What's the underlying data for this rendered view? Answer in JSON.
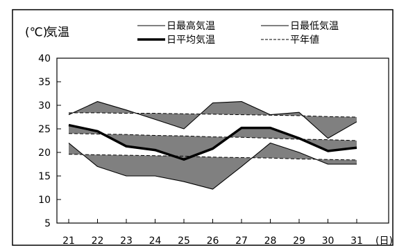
{
  "chart_data": {
    "type": "line",
    "title": "気温",
    "ylabel": "(℃)",
    "xlabel": "(日)",
    "ylim": [
      5,
      40
    ],
    "yticks": [
      5,
      10,
      15,
      20,
      25,
      30,
      35,
      40
    ],
    "x": [
      21,
      22,
      23,
      24,
      25,
      26,
      27,
      28,
      29,
      30,
      31
    ],
    "grid": false,
    "legend_position": "top-right",
    "series": [
      {
        "name": "日最高気温",
        "style": "thin-solid",
        "values": [
          28.0,
          30.8,
          29.0,
          27.0,
          25.0,
          30.5,
          30.8,
          28.0,
          28.5,
          23.0,
          26.5
        ]
      },
      {
        "name": "日最低気温",
        "style": "thin-solid",
        "values": [
          22.0,
          17.0,
          15.0,
          15.0,
          13.8,
          12.2,
          17.0,
          22.0,
          20.0,
          17.5,
          17.5
        ]
      },
      {
        "name": "日平均気温",
        "style": "thick-solid",
        "values": [
          25.8,
          24.5,
          21.3,
          20.5,
          18.5,
          20.8,
          25.2,
          25.2,
          23.0,
          20.3,
          21.0
        ]
      },
      {
        "name": "平年値",
        "style": "dashed",
        "group": "max",
        "values": [
          28.4,
          28.4,
          28.3,
          28.3,
          28.2,
          28.1,
          28.0,
          27.9,
          27.8,
          27.6,
          27.5
        ]
      },
      {
        "name": "平年値",
        "style": "dashed",
        "group": "avg",
        "values": [
          24.0,
          23.9,
          23.8,
          23.6,
          23.5,
          23.3,
          23.2,
          23.0,
          22.8,
          22.7,
          22.5
        ]
      },
      {
        "name": "平年値",
        "style": "dashed",
        "group": "min",
        "values": [
          19.6,
          19.5,
          19.4,
          19.3,
          19.2,
          19.0,
          18.9,
          18.8,
          18.6,
          18.5,
          18.4
        ]
      }
    ],
    "shading_color": "#808080",
    "line_color": "#000000"
  }
}
